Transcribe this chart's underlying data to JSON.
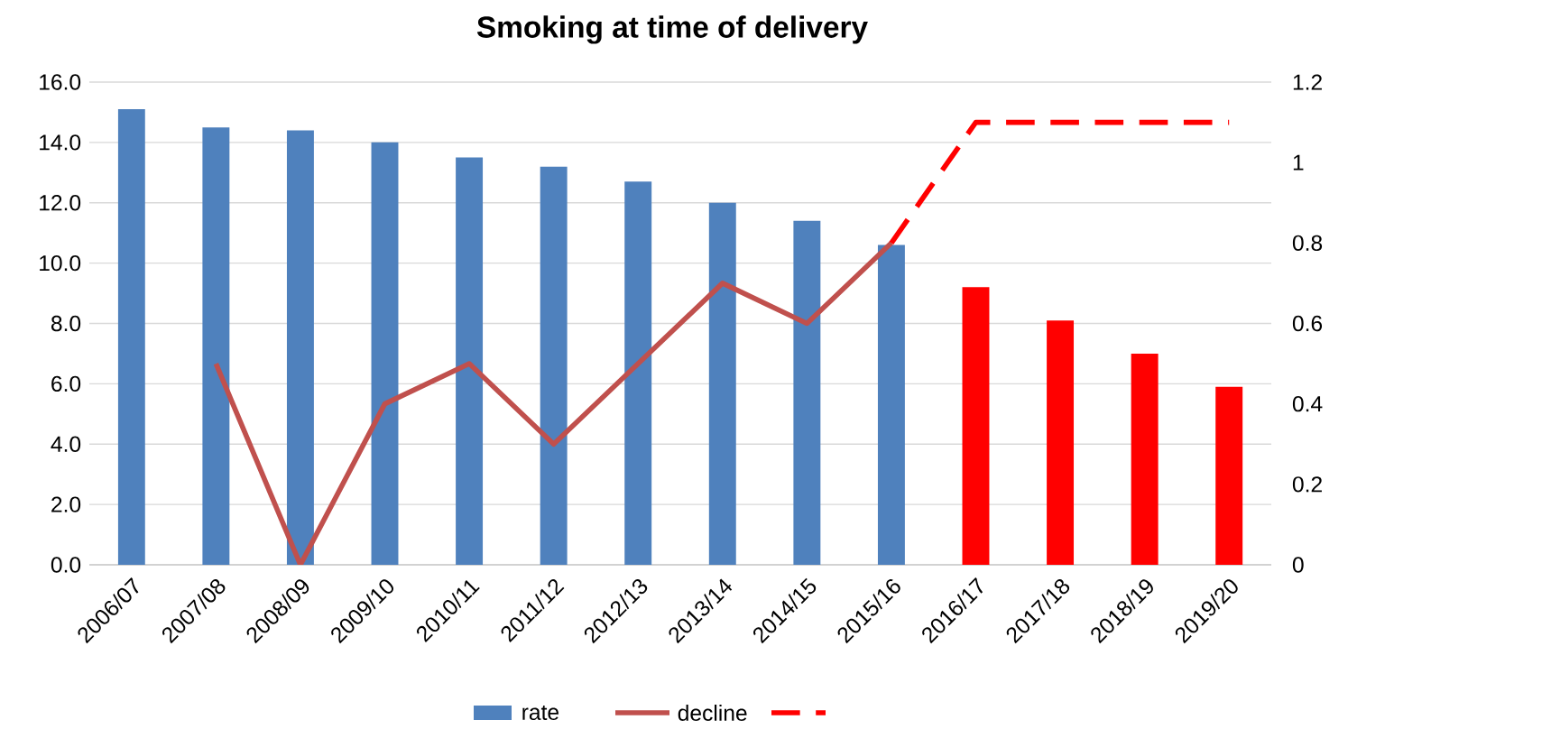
{
  "chart_data": {
    "type": "bar",
    "title": "Smoking at time of delivery",
    "categories": [
      "2006/07",
      "2007/08",
      "2008/09",
      "2009/10",
      "2010/11",
      "2011/12",
      "2012/13",
      "2013/14",
      "2014/15",
      "2015/16",
      "2016/17",
      "2017/18",
      "2018/19",
      "2019/20"
    ],
    "series": [
      {
        "name": "rate",
        "color": "#4f81bd",
        "values": [
          15.1,
          14.5,
          14.4,
          14.0,
          13.5,
          13.2,
          12.7,
          12.0,
          11.4,
          10.6,
          null,
          null,
          null,
          null
        ]
      },
      {
        "color": "#ff0000",
        "values": [
          null,
          null,
          null,
          null,
          null,
          null,
          null,
          null,
          null,
          null,
          9.2,
          8.1,
          7.0,
          5.9
        ]
      },
      {
        "name": "decline",
        "type": "line",
        "axis": "y2",
        "color": "#c0504d",
        "values": [
          null,
          0.5,
          0,
          0.4,
          0.5,
          0.3,
          0.5,
          0.7,
          0.6,
          0.8,
          null,
          null,
          null,
          null
        ]
      },
      {
        "type": "line",
        "axis": "y2",
        "color": "#ff0000",
        "line_style": "dashed",
        "values": [
          null,
          null,
          null,
          null,
          null,
          null,
          null,
          null,
          null,
          0.8,
          1.1,
          1.1,
          1.1,
          1.1
        ]
      }
    ],
    "ylim": [
      0,
      16
    ],
    "yticks": [
      {
        "value": 0,
        "label": "0.0"
      },
      {
        "value": 2,
        "label": "2.0"
      },
      {
        "value": 4,
        "label": "4.0"
      },
      {
        "value": 6,
        "label": "6.0"
      },
      {
        "value": 8,
        "label": "8.0"
      },
      {
        "value": 10,
        "label": "10.0"
      },
      {
        "value": 12,
        "label": "12.0"
      },
      {
        "value": 14,
        "label": "14.0"
      },
      {
        "value": 16,
        "label": "16.0"
      }
    ],
    "y2lim": [
      0,
      1.2
    ],
    "y2ticks": [
      0,
      0.2,
      0.4,
      0.6,
      0.8,
      1,
      1.2
    ],
    "grid": "y",
    "legend": "bottom",
    "marker": "none"
  }
}
